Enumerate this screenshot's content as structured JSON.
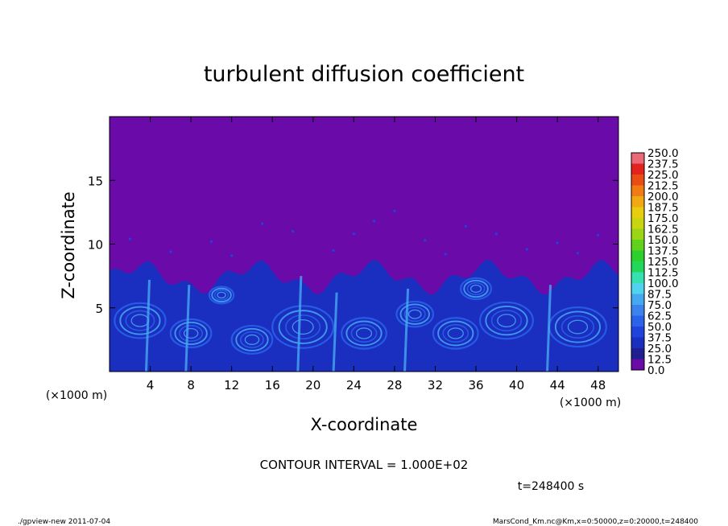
{
  "chart_data": {
    "type": "heatmap",
    "title": "turbulent diffusion coefficient",
    "xlabel": "X-coordinate",
    "ylabel": "Z-coordinate",
    "x_unit": "(×1000 m)",
    "y_unit": "(×1000 m)",
    "xlim": [
      0,
      50
    ],
    "ylim": [
      0,
      20
    ],
    "x_ticks": [
      4,
      8,
      12,
      16,
      20,
      24,
      28,
      32,
      36,
      40,
      44,
      48
    ],
    "y_ticks": [
      5,
      10,
      15
    ],
    "colorbar": {
      "levels": [
        "0.0",
        "12.5",
        "25.0",
        "37.5",
        "50.0",
        "62.5",
        "75.0",
        "87.5",
        "100.0",
        "112.5",
        "125.0",
        "137.5",
        "150.0",
        "162.5",
        "175.0",
        "187.5",
        "200.0",
        "212.5",
        "225.0",
        "237.5",
        "250.0"
      ],
      "colors": [
        "#6a0aa8",
        "#1f1f8f",
        "#1a2ec0",
        "#1f44dc",
        "#2a63ea",
        "#3c83ef",
        "#45a9f2",
        "#4fd3ee",
        "#36e0b0",
        "#22d85a",
        "#2dcf2d",
        "#61d21c",
        "#9ad616",
        "#c9d60f",
        "#e8cc0e",
        "#f2a812",
        "#f27c14",
        "#ea4d14",
        "#e2231e",
        "#eb6a78"
      ]
    },
    "field_description": "Background (~0) purple above ~8 km; turbulent boundary layer below ~8 km with values ~25-87.5",
    "boundary_layer_top_km": 8
  },
  "annotations": {
    "contour_interval": "CONTOUR INTERVAL = 1.000E+02",
    "time": "t=248400 s",
    "footer_left": "./gpview-new   2011-07-04",
    "footer_right": "MarsCond_Km.nc@Km,x=0:50000,z=0:20000,t=248400"
  }
}
